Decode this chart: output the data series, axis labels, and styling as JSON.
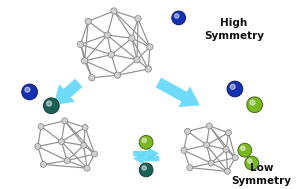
{
  "bg_color": "#ffffff",
  "high_sym_text": "High\nSymmetry",
  "low_sym_text": "Low\nSymmetry",
  "node_color": "#d0d0d0",
  "node_edge_color": "#808080",
  "edge_color": "#909090",
  "blue_color": "#1530b0",
  "blue_edge": "#0a1060",
  "green_color": "#7ab820",
  "green_edge": "#3a6010",
  "dark_teal_color": "#1a6055",
  "dark_teal_edge": "#0a3530",
  "arrow_color": "#60d8f8",
  "arrow_edge": "#40b8d8",
  "text_fontsize": 7.5,
  "text_fontweight": "bold",
  "text_color": "#111111"
}
